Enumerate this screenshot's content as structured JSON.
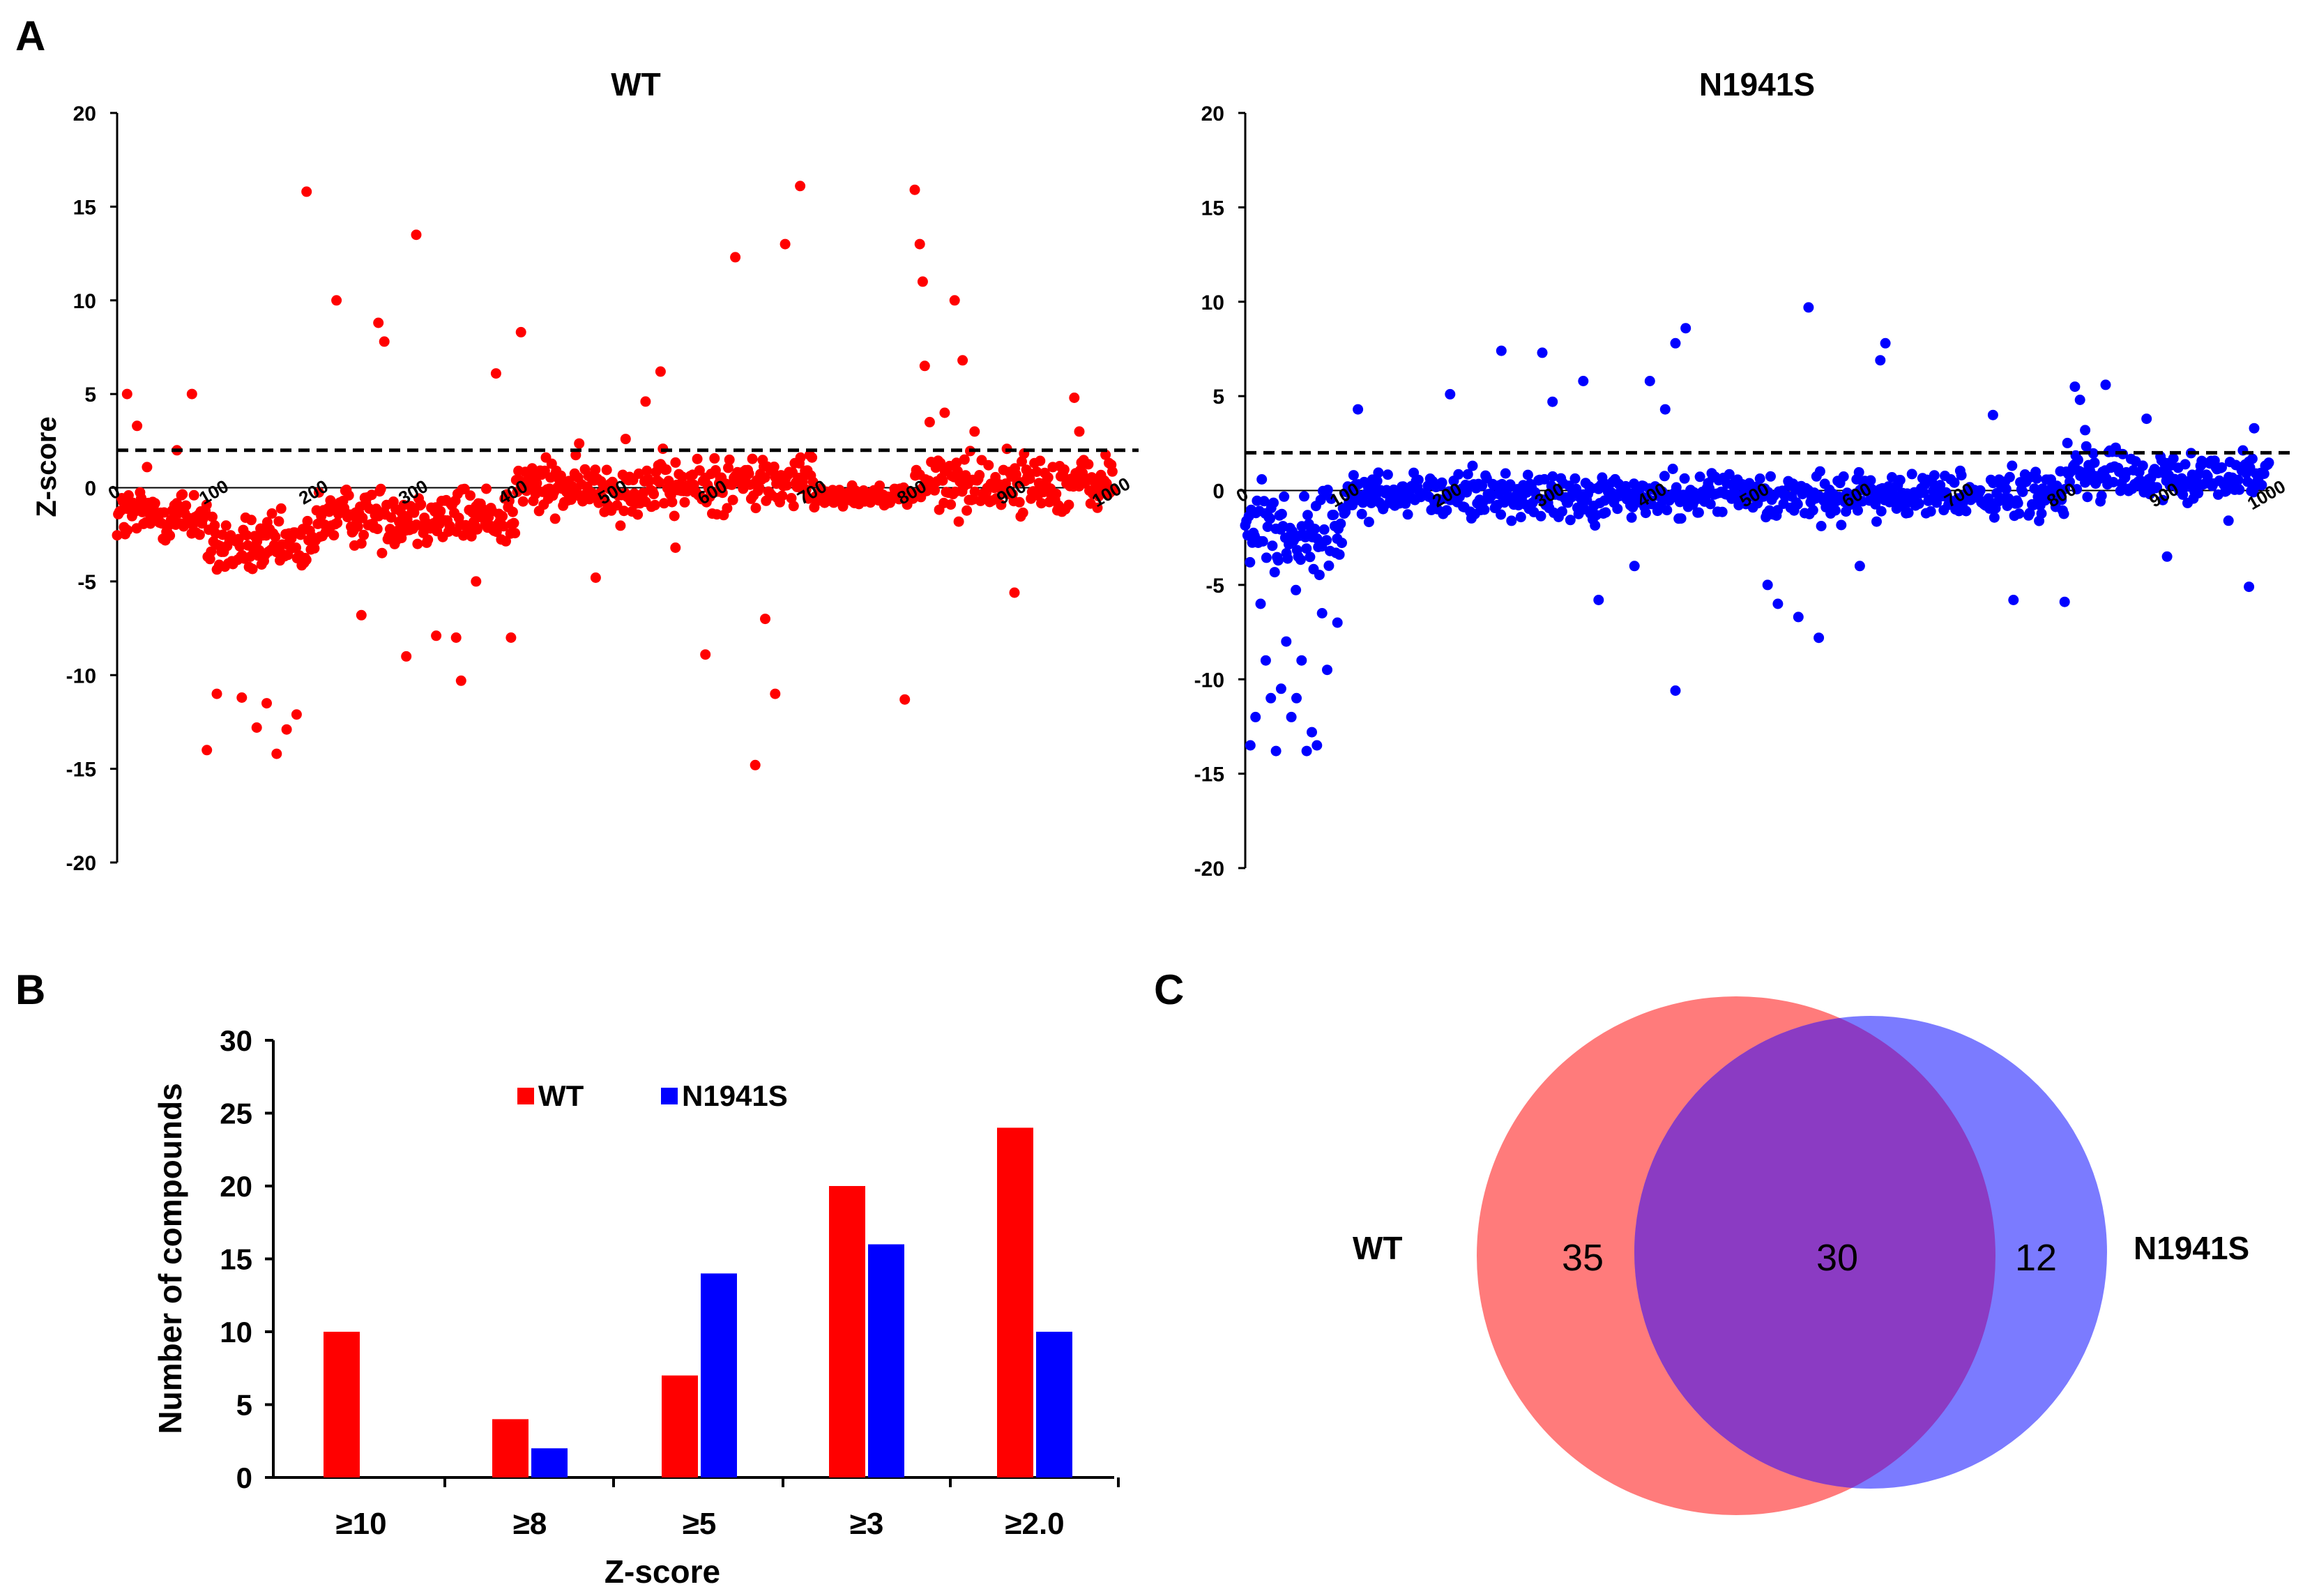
{
  "panels": {
    "a": "A",
    "b": "B",
    "c": "C"
  },
  "colors": {
    "wt": "#ff0000",
    "n1941s": "#0000ff",
    "venn_wt": "#ff7b7b",
    "venn_n1941s": "#7b7bff",
    "venn_overlap": "#8b3bc3"
  },
  "chart_data": [
    {
      "type": "scatter",
      "title": "WT",
      "ylabel": "Z-score",
      "xlim": [
        0,
        1000
      ],
      "ylim": [
        -20,
        20
      ],
      "yticks": [
        "20",
        "15",
        "10",
        "5",
        "0",
        "-5",
        "-10",
        "-15",
        "-20"
      ],
      "xticks": [
        "0",
        "100",
        "200",
        "300",
        "400",
        "500",
        "600",
        "700",
        "800",
        "900",
        "1000"
      ],
      "threshold": 2,
      "series": [
        {
          "name": "WT",
          "color": "#ff0000",
          "points": [
            [
              10,
              5
            ],
            [
              20,
              3.3
            ],
            [
              30,
              1.1
            ],
            [
              60,
              2
            ],
            [
              75,
              5
            ],
            [
              90,
              -14
            ],
            [
              100,
              -11
            ],
            [
              125,
              -11.2
            ],
            [
              140,
              -12.8
            ],
            [
              150,
              -11.5
            ],
            [
              160,
              -14.2
            ],
            [
              170,
              -12.9
            ],
            [
              180,
              -12.1
            ],
            [
              190,
              15.8
            ],
            [
              220,
              10
            ],
            [
              245,
              -6.8
            ],
            [
              262,
              8.8
            ],
            [
              268,
              7.8
            ],
            [
              290,
              -9
            ],
            [
              300,
              13.5
            ],
            [
              320,
              -7.9
            ],
            [
              340,
              -8
            ],
            [
              345,
              -10.3
            ],
            [
              360,
              -5
            ],
            [
              380,
              6.1
            ],
            [
              395,
              -8
            ],
            [
              405,
              8.3
            ],
            [
              440,
              0.8
            ],
            [
              480,
              -4.8
            ],
            [
              510,
              2.6
            ],
            [
              530,
              4.6
            ],
            [
              545,
              6.2
            ],
            [
              560,
              -3.2
            ],
            [
              590,
              -8.9
            ],
            [
              620,
              12.3
            ],
            [
              640,
              -14.8
            ],
            [
              650,
              -7
            ],
            [
              660,
              -11
            ],
            [
              670,
              13
            ],
            [
              685,
              16.1
            ],
            [
              790,
              -11.3
            ],
            [
              800,
              15.9
            ],
            [
              805,
              13
            ],
            [
              808,
              11
            ],
            [
              810,
              6.5
            ],
            [
              815,
              3.5
            ],
            [
              830,
              4
            ],
            [
              840,
              10
            ],
            [
              848,
              6.8
            ],
            [
              860,
              3
            ],
            [
              900,
              -5.6
            ],
            [
              960,
              4.8
            ],
            [
              965,
              3
            ]
          ]
        }
      ]
    },
    {
      "type": "scatter",
      "title": "N1941S",
      "ylabel": "",
      "xlim": [
        0,
        1000
      ],
      "ylim": [
        -20,
        20
      ],
      "yticks": [
        "20",
        "15",
        "10",
        "5",
        "0",
        "-5",
        "-10",
        "-15",
        "-20"
      ],
      "xticks": [
        "0",
        "100",
        "200",
        "300",
        "400",
        "500",
        "600",
        "700",
        "800",
        "900",
        "1000"
      ],
      "threshold": 2,
      "series": [
        {
          "name": "N1941S",
          "color": "#0000ff",
          "points": [
            [
              5,
              -13.5
            ],
            [
              10,
              -12
            ],
            [
              15,
              -6
            ],
            [
              20,
              -9
            ],
            [
              25,
              -11
            ],
            [
              30,
              -13.8
            ],
            [
              35,
              -10.5
            ],
            [
              40,
              -8
            ],
            [
              45,
              -12
            ],
            [
              50,
              -11
            ],
            [
              55,
              -9
            ],
            [
              60,
              -13.8
            ],
            [
              65,
              -12.8
            ],
            [
              70,
              -13.5
            ],
            [
              75,
              -6.5
            ],
            [
              80,
              -9.5
            ],
            [
              90,
              -7
            ],
            [
              110,
              4.3
            ],
            [
              200,
              5.1
            ],
            [
              250,
              7.4
            ],
            [
              290,
              7.3
            ],
            [
              300,
              4.7
            ],
            [
              330,
              5.8
            ],
            [
              345,
              -5.8
            ],
            [
              380,
              -4
            ],
            [
              395,
              5.8
            ],
            [
              410,
              4.3
            ],
            [
              420,
              7.8
            ],
            [
              430,
              8.6
            ],
            [
              420,
              -10.6
            ],
            [
              510,
              -5
            ],
            [
              520,
              -6
            ],
            [
              540,
              -6.7
            ],
            [
              550,
              9.7
            ],
            [
              560,
              -7.8
            ],
            [
              600,
              -4
            ],
            [
              620,
              6.9
            ],
            [
              625,
              7.8
            ],
            [
              730,
              4
            ],
            [
              750,
              -5.8
            ],
            [
              800,
              -5.9
            ],
            [
              810,
              5.5
            ],
            [
              815,
              4.8
            ],
            [
              820,
              3.2
            ],
            [
              840,
              5.6
            ],
            [
              880,
              3.8
            ],
            [
              900,
              -3.5
            ],
            [
              960,
              -1.6
            ],
            [
              980,
              -5.1
            ],
            [
              985,
              3.3
            ]
          ]
        }
      ]
    },
    {
      "type": "bar",
      "ylabel": "Number of compounds",
      "xlabel": "Z-score",
      "categories": [
        "≥10",
        "≥8",
        "≥5",
        "≥3",
        "≥2.0"
      ],
      "ylim": [
        0,
        30
      ],
      "yticks": [
        "0",
        "5",
        "10",
        "15",
        "20",
        "25",
        "30"
      ],
      "legend": [
        "WT",
        "N1941S"
      ],
      "series": [
        {
          "name": "WT",
          "color": "#ff0000",
          "values": [
            10,
            4,
            7,
            20,
            24
          ]
        },
        {
          "name": "N1941S",
          "color": "#0000ff",
          "values": [
            0,
            2,
            14,
            16,
            10
          ]
        }
      ]
    }
  ],
  "venn": {
    "left_label": "WT",
    "right_label": "N1941S",
    "left_only": "35",
    "overlap": "30",
    "right_only": "12"
  }
}
